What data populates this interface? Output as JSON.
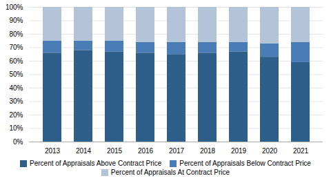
{
  "chart_data": {
    "type": "bar",
    "stacked": true,
    "categories": [
      "2013",
      "2014",
      "2015",
      "2016",
      "2017",
      "2018",
      "2019",
      "2020",
      "2021"
    ],
    "series": [
      {
        "name": "Percent of Appraisals Above Contract Price",
        "color": "#2e5f8a",
        "values": [
          66,
          68,
          67,
          66,
          65,
          66,
          67,
          63,
          59
        ]
      },
      {
        "name": "Percent of Appraisals Below Contract Price",
        "color": "#4a7db5",
        "values": [
          9,
          7,
          8,
          8,
          9,
          8,
          7,
          10,
          15
        ]
      },
      {
        "name": "Percent of Appraisals At Contract Price",
        "color": "#b4c4d8",
        "values": [
          25,
          25,
          25,
          26,
          26,
          26,
          26,
          27,
          26
        ]
      }
    ],
    "ylim": [
      0,
      100
    ],
    "yticks": [
      {
        "value": 0,
        "label": "0%"
      },
      {
        "value": 10,
        "label": "10%"
      },
      {
        "value": 20,
        "label": "20%"
      },
      {
        "value": 30,
        "label": "30%"
      },
      {
        "value": 40,
        "label": "40%"
      },
      {
        "value": 50,
        "label": "50%"
      },
      {
        "value": 60,
        "label": "60%"
      },
      {
        "value": 70,
        "label": "70%"
      },
      {
        "value": 80,
        "label": "80%"
      },
      {
        "value": 90,
        "label": "90%"
      },
      {
        "value": 100,
        "label": "100%"
      }
    ],
    "grid": true,
    "legend": "bottom"
  }
}
